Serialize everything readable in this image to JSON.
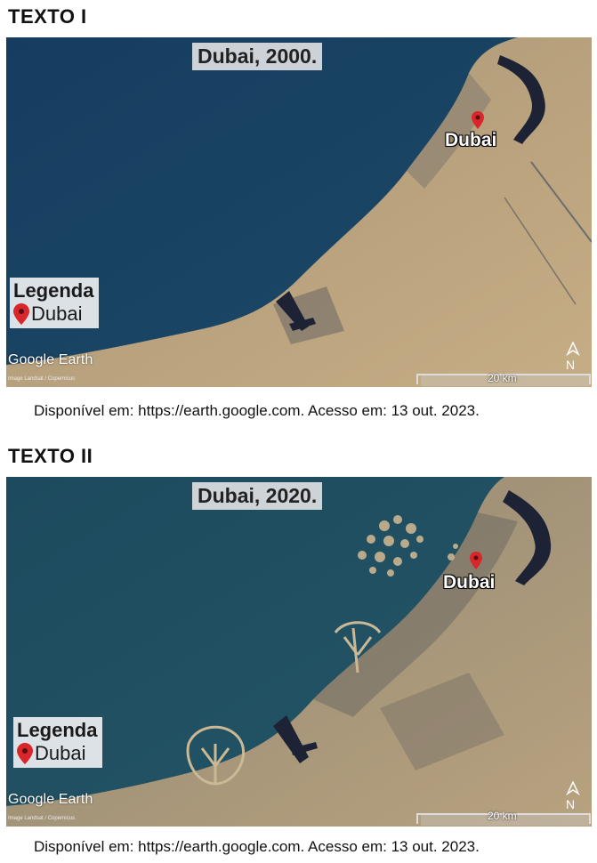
{
  "text1": {
    "heading": "TEXTO I",
    "map_title": "Dubai, 2000.",
    "city_label": "Dubai",
    "legend_title": "Legenda",
    "legend_item": "Dubai",
    "logo": "Google Earth",
    "credit": "Image Landsat / Copernicus",
    "scale": "20 km",
    "north": "N",
    "source": "Disponível em: https://earth.google.com. Acesso em: 13 out. 2023."
  },
  "text2": {
    "heading": "TEXTO II",
    "map_title": "Dubai, 2020.",
    "city_label": "Dubai",
    "legend_title": "Legenda",
    "legend_item": "Dubai",
    "logo": "Google Earth",
    "credit": "Image Landsat / Copernicus",
    "scale": "20 km",
    "north": "N",
    "source": "Disponível em: https://earth.google.com. Acesso em: 13 out. 2023."
  },
  "colors": {
    "sea_2000": "#173f5f",
    "sea_2020": "#1f4a5e",
    "land": "#b49c7a",
    "pin": "#d9262b"
  },
  "icons": [
    "map-pin-icon",
    "north-arrow-icon"
  ]
}
